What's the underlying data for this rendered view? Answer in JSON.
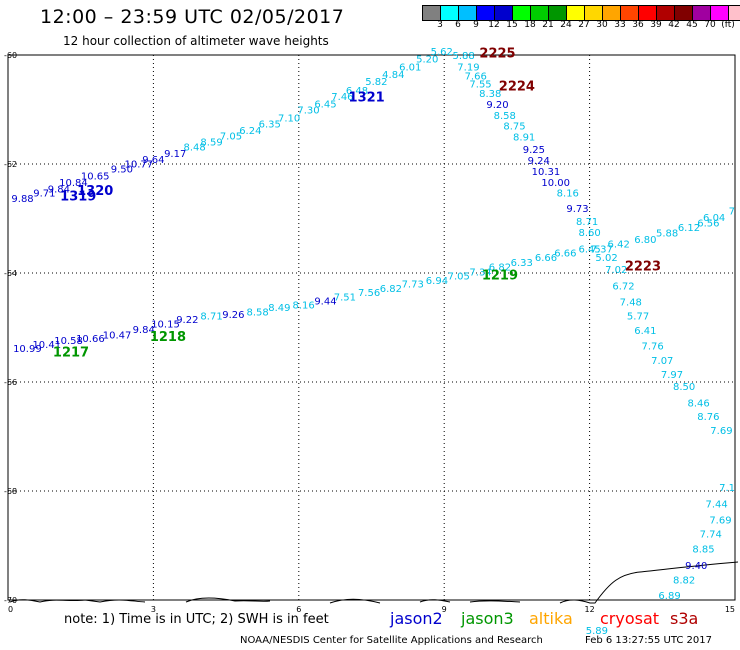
{
  "header": {
    "title": "12:00 – 23:59 UTC 02/05/2017",
    "subtitle": "12 hour collection of altimeter wave heights"
  },
  "legend": {
    "colors": [
      "#808080",
      "#00ffff",
      "#00bfff",
      "#0000ff",
      "#0000cd",
      "#00ff00",
      "#00cd00",
      "#009600",
      "#ffff00",
      "#ffd700",
      "#ffa500",
      "#ff4500",
      "#ff0000",
      "#b00000",
      "#800000",
      "#a000a0",
      "#ff00ff",
      "#ffc0cb",
      "#000000"
    ],
    "labels": [
      "3",
      "6",
      "9",
      "12",
      "15",
      "18",
      "21",
      "24",
      "27",
      "30",
      "33",
      "36",
      "39",
      "42",
      "45",
      "70",
      "(ft)"
    ]
  },
  "axes": {
    "y_labels": [
      {
        "text": "-60",
        "y": -60
      },
      {
        "text": "-62",
        "y": -62
      },
      {
        "text": "-64",
        "y": -64
      },
      {
        "text": "-66",
        "y": -66
      },
      {
        "text": "-68",
        "y": -68
      },
      {
        "text": "-70",
        "y": -70
      }
    ],
    "x_labels": [
      {
        "text": "0",
        "x": 0
      },
      {
        "text": "3",
        "x": 3
      },
      {
        "text": "6",
        "x": 6
      },
      {
        "text": "9",
        "x": 9
      },
      {
        "text": "12",
        "x": 12
      },
      {
        "text": "15",
        "x": 15
      }
    ]
  },
  "tracks": [
    {
      "name": "upper-track",
      "color": "#00bfe6",
      "points": [
        [
          "9.88",
          0.3,
          -62.7,
          "#0000cd"
        ],
        [
          "9.71",
          0.75,
          -62.6,
          "#0000cd"
        ],
        [
          "9.84",
          1.05,
          -62.52,
          "#0000cd"
        ],
        [
          "10.84",
          1.35,
          -62.4,
          "#0000cd"
        ],
        [
          "10.65",
          1.8,
          -62.28,
          "#0000cd"
        ],
        [
          "9.50",
          2.35,
          -62.16,
          "#0000cd"
        ],
        [
          "10.77",
          2.7,
          -62.06,
          "#0000cd"
        ],
        [
          "9.64",
          3.0,
          -61.98,
          "#0000cd"
        ],
        [
          "9.17",
          3.45,
          -61.87,
          "#0000cd"
        ],
        [
          "8.48",
          3.85,
          -61.75,
          "#00bfe6"
        ],
        [
          "8.59",
          4.2,
          -61.66,
          "#00bfe6"
        ],
        [
          "7.05",
          4.6,
          -61.55,
          "#00bfe6"
        ],
        [
          "6.24",
          5.0,
          -61.45,
          "#00bfe6"
        ],
        [
          "6.35",
          5.4,
          -61.33,
          "#00bfe6"
        ],
        [
          "7.10",
          5.8,
          -61.22,
          "#00bfe6"
        ],
        [
          "7.30",
          6.2,
          -61.07,
          "#00bfe6"
        ],
        [
          "6.45",
          6.55,
          -60.96,
          "#00bfe6"
        ],
        [
          "7.46",
          6.9,
          -60.83,
          "#00bfe6"
        ],
        [
          "6.48",
          7.2,
          -60.72,
          "#00bfe6"
        ],
        [
          "5.82",
          7.6,
          -60.55,
          "#00bfe6"
        ],
        [
          "4.84",
          7.95,
          -60.42,
          "#00bfe6"
        ],
        [
          "6.01",
          8.3,
          -60.28,
          "#00bfe6"
        ],
        [
          "5.20",
          8.65,
          -60.14,
          "#00bfe6"
        ],
        [
          "5.62",
          8.95,
          -60.0,
          "#00bfe6"
        ],
        [
          "5.88",
          9.4,
          -60.07,
          "#00bfe6"
        ]
      ]
    },
    {
      "name": "descending-track",
      "color": "#00bfe6",
      "points": [
        [
          "7.19",
          9.5,
          -60.28,
          "#00bfe6"
        ],
        [
          "7.66",
          9.65,
          -60.45,
          "#00bfe6"
        ],
        [
          "7.55",
          9.75,
          -60.6,
          "#00bfe6"
        ],
        [
          "8.38",
          9.95,
          -60.77,
          "#00bfe6"
        ],
        [
          "9.20",
          10.1,
          -60.97,
          "#0000cd"
        ],
        [
          "8.58",
          10.25,
          -61.17,
          "#00bfe6"
        ],
        [
          "8.75",
          10.45,
          -61.37,
          "#00bfe6"
        ],
        [
          "8.91",
          10.65,
          -61.57,
          "#00bfe6"
        ],
        [
          "9.25",
          10.85,
          -61.8,
          "#0000cd"
        ],
        [
          "9.24",
          10.95,
          -62.0,
          "#0000cd"
        ],
        [
          "10.31",
          11.1,
          -62.2,
          "#0000cd"
        ],
        [
          "10.00",
          11.3,
          -62.4,
          "#0000cd"
        ],
        [
          "8.16",
          11.55,
          -62.6,
          "#00bfe6"
        ],
        [
          "9.73",
          11.75,
          -62.88,
          "#0000cd"
        ],
        [
          "8.71",
          11.95,
          -63.12,
          "#00bfe6"
        ],
        [
          "8.60",
          12.0,
          -63.32,
          "#00bfe6"
        ],
        [
          "7.37",
          12.25,
          -63.62,
          "#00bfe6"
        ],
        [
          "5.02",
          12.35,
          -63.78,
          "#00bfe6"
        ],
        [
          "7.02",
          12.55,
          -64.0,
          "#00bfe6"
        ],
        [
          "6.72",
          12.7,
          -64.3,
          "#00bfe6"
        ],
        [
          "7.48",
          12.85,
          -64.6,
          "#00bfe6"
        ],
        [
          "5.77",
          13.0,
          -64.85,
          "#00bfe6"
        ],
        [
          "6.41",
          13.15,
          -65.12,
          "#00bfe6"
        ],
        [
          "7.76",
          13.3,
          -65.4,
          "#00bfe6"
        ],
        [
          "7.07",
          13.5,
          -65.67,
          "#00bfe6"
        ],
        [
          "7.97",
          13.7,
          -65.93,
          "#00bfe6"
        ],
        [
          "8.50",
          13.95,
          -66.15,
          "#00bfe6"
        ],
        [
          "8.46",
          14.25,
          -66.45,
          "#00bfe6"
        ],
        [
          "8.76",
          14.45,
          -66.7,
          "#00bfe6"
        ],
        [
          "7.69",
          14.95,
          -66.95,
          "#00bfe6"
        ]
      ]
    },
    {
      "name": "lower-track",
      "color": "#00bfe6",
      "points": [
        [
          "10.99",
          0.4,
          -65.45,
          "#0000cd"
        ],
        [
          "10.41",
          0.8,
          -65.38,
          "#0000cd"
        ],
        [
          "10.58",
          1.25,
          -65.3,
          "#0000cd"
        ],
        [
          "10.66",
          1.7,
          -65.27,
          "#0000cd"
        ],
        [
          "10.47",
          2.25,
          -65.2,
          "#0000cd"
        ],
        [
          "9.84",
          2.8,
          -65.1,
          "#0000cd"
        ],
        [
          "10.15",
          3.25,
          -65.0,
          "#0000cd"
        ],
        [
          "9.22",
          3.7,
          -64.92,
          "#0000cd"
        ],
        [
          "8.71",
          4.2,
          -64.85,
          "#00bfe6"
        ],
        [
          "9.26",
          4.65,
          -64.83,
          "#0000cd"
        ],
        [
          "8.58",
          5.15,
          -64.78,
          "#00bfe6"
        ],
        [
          "8.49",
          5.6,
          -64.7,
          "#00bfe6"
        ],
        [
          "8.16",
          6.1,
          -64.65,
          "#00bfe6"
        ],
        [
          "9.44",
          6.55,
          -64.58,
          "#0000cd"
        ],
        [
          "7.51",
          6.95,
          -64.5,
          "#00bfe6"
        ],
        [
          "7.56",
          7.45,
          -64.42,
          "#00bfe6"
        ],
        [
          "6.82",
          7.9,
          -64.35,
          "#00bfe6"
        ],
        [
          "7.73",
          8.35,
          -64.27,
          "#00bfe6"
        ],
        [
          "6.94",
          8.85,
          -64.2,
          "#00bfe6"
        ],
        [
          "7.05",
          9.3,
          -64.12,
          "#00bfe6"
        ],
        [
          "7.34",
          9.75,
          -64.05,
          "#00bfe6"
        ],
        [
          "6.82",
          10.15,
          -63.95,
          "#00bfe6"
        ],
        [
          "6.33",
          10.6,
          -63.87,
          "#00bfe6"
        ],
        [
          "6.66",
          11.1,
          -63.78,
          "#00bfe6"
        ],
        [
          "6.66",
          11.5,
          -63.7,
          "#00bfe6"
        ],
        [
          "6.45",
          12.0,
          -63.62,
          "#00bfe6"
        ],
        [
          "6.42",
          12.6,
          -63.53,
          "#00bfe6"
        ],
        [
          "6.80",
          13.15,
          -63.45,
          "#00bfe6"
        ],
        [
          "5.88",
          13.6,
          -63.33,
          "#00bfe6"
        ],
        [
          "6.12",
          14.05,
          -63.23,
          "#00bfe6"
        ],
        [
          "6.56",
          14.45,
          -63.15,
          "#00bfe6"
        ],
        [
          "6.04",
          14.8,
          -63.05,
          "#00bfe6"
        ],
        [
          "7",
          15.0,
          -62.93,
          "#00bfe6"
        ]
      ]
    },
    {
      "name": "bottom-track",
      "color": "#00bfe6",
      "points": [
        [
          "7.1",
          15.0,
          -68.0,
          "#00bfe6"
        ],
        [
          "7.44",
          14.85,
          -68.3,
          "#00bfe6"
        ],
        [
          "7.69",
          14.7,
          -68.6,
          "#00bfe6"
        ],
        [
          "7.74",
          14.5,
          -68.85,
          "#00bfe6"
        ],
        [
          "8.85",
          14.35,
          -69.13,
          "#00bfe6"
        ],
        [
          "9.40",
          14.2,
          -69.43,
          "#0000cd"
        ],
        [
          "8.82",
          13.95,
          -69.7,
          "#00bfe6"
        ],
        [
          "6.89",
          13.65,
          -69.98,
          "#00bfe6"
        ],
        [
          "5.89",
          12.15,
          -70.62,
          "#00bfe6"
        ]
      ]
    }
  ],
  "pass_labels": [
    {
      "text": "1319",
      "x": 1.45,
      "y": -62.67,
      "color": "#0000cd"
    },
    {
      "text": "1320",
      "x": 1.8,
      "y": -62.57,
      "color": "#0000cd"
    },
    {
      "text": "1321",
      "x": 7.4,
      "y": -60.85,
      "color": "#0000cd"
    },
    {
      "text": "2225",
      "x": 10.1,
      "y": -60.05,
      "color": "#800000"
    },
    {
      "text": "2224",
      "x": 10.5,
      "y": -60.65,
      "color": "#800000"
    },
    {
      "text": "2223",
      "x": 13.1,
      "y": -63.95,
      "color": "#800000"
    },
    {
      "text": "1219",
      "x": 10.15,
      "y": -64.12,
      "color": "#009600"
    },
    {
      "text": "1218",
      "x": 3.3,
      "y": -65.25,
      "color": "#009600"
    },
    {
      "text": "1217",
      "x": 1.3,
      "y": -65.53,
      "color": "#009600"
    }
  ],
  "footer": {
    "note": "note: 1) Time is in UTC; 2) SWH is in feet",
    "satellites": [
      {
        "name": "jason2",
        "color": "#0000cd"
      },
      {
        "name": "jason3",
        "color": "#009600"
      },
      {
        "name": "altika",
        "color": "#ffa500"
      },
      {
        "name": "cryosat",
        "color": "#ff0000"
      },
      {
        "name": "s3a",
        "color": "#b00000"
      }
    ],
    "credit": "NOAA/NESDIS Center for Satellite Applications and Research",
    "timestamp": "Feb  6 13:27:55 UTC 2017"
  }
}
